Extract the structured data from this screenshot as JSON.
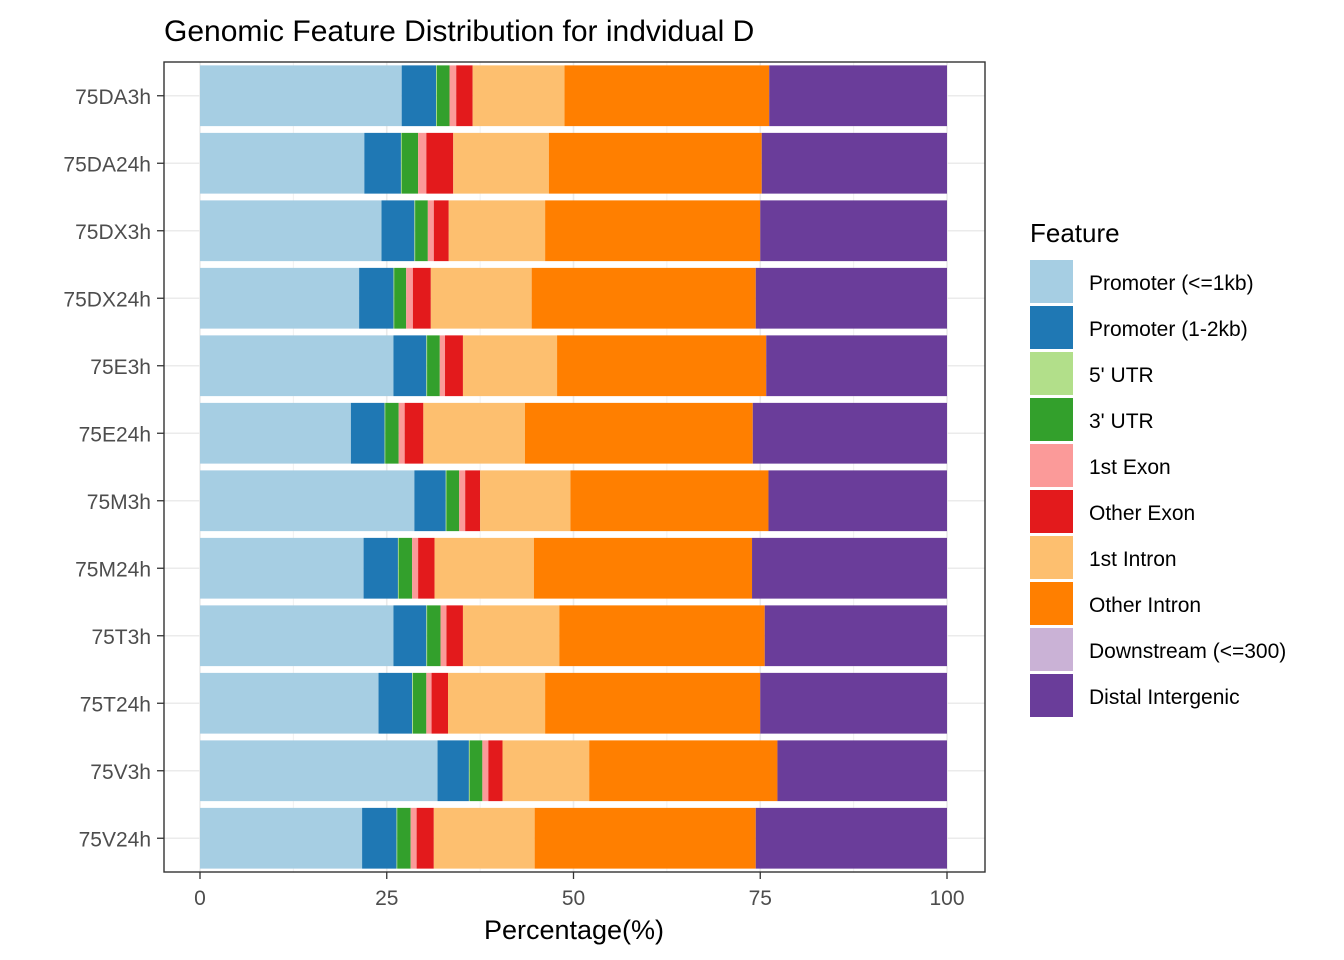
{
  "chart_data": {
    "type": "bar",
    "orientation": "horizontal",
    "stacked": true,
    "title": "Genomic Feature Distribution for indvidual D",
    "xlabel": "Percentage(%)",
    "ylabel": "",
    "xlim": [
      0,
      100
    ],
    "xticks": [
      "0",
      "25",
      "50",
      "75",
      "100"
    ],
    "grid": true,
    "legend_title": "Feature",
    "legend_position": "right",
    "categories": [
      "75DA3h",
      "75DA24h",
      "75DX3h",
      "75DX24h",
      "75E3h",
      "75E24h",
      "75M3h",
      "75M24h",
      "75T3h",
      "75T24h",
      "75V3h",
      "75V24h"
    ],
    "series": [
      {
        "name": "Promoter (<=1kb)",
        "color": "#A6CEE3",
        "values": [
          27.0,
          22.0,
          24.3,
          21.3,
          25.9,
          20.2,
          28.7,
          21.9,
          25.9,
          23.9,
          31.8,
          21.7
        ]
      },
      {
        "name": "Promoter (1-2kb)",
        "color": "#1F78B4",
        "values": [
          4.6,
          4.9,
          4.4,
          4.6,
          4.4,
          4.5,
          4.2,
          4.6,
          4.4,
          4.5,
          4.2,
          4.6
        ]
      },
      {
        "name": "5' UTR",
        "color": "#B2DF8A",
        "values": [
          0.1,
          0.1,
          0.1,
          0.1,
          0.1,
          0.1,
          0.1,
          0.1,
          0.1,
          0.1,
          0.1,
          0.1
        ]
      },
      {
        "name": "3' UTR",
        "color": "#33A02C",
        "values": [
          1.7,
          2.2,
          1.7,
          1.6,
          1.7,
          1.8,
          1.7,
          1.8,
          1.8,
          1.8,
          1.7,
          1.8
        ]
      },
      {
        "name": "1st Exon",
        "color": "#FB9A99",
        "values": [
          0.9,
          1.1,
          0.8,
          0.9,
          0.7,
          0.8,
          0.8,
          0.8,
          0.8,
          0.7,
          0.8,
          0.8
        ]
      },
      {
        "name": "Other Exon",
        "color": "#E31A1C",
        "values": [
          2.2,
          3.6,
          2.0,
          2.4,
          2.4,
          2.5,
          2.0,
          2.2,
          2.2,
          2.2,
          1.9,
          2.3
        ]
      },
      {
        "name": "1st Intron",
        "color": "#FDBF6F",
        "values": [
          12.3,
          12.8,
          12.9,
          13.5,
          12.6,
          13.6,
          12.1,
          13.3,
          12.9,
          13.0,
          11.6,
          13.5
        ]
      },
      {
        "name": "Other Intron",
        "color": "#FF7F00",
        "values": [
          27.4,
          28.5,
          28.8,
          30.0,
          28.0,
          30.5,
          26.5,
          29.2,
          27.5,
          28.8,
          25.2,
          29.6
        ]
      },
      {
        "name": "Downstream (<=300)",
        "color": "#CAB2D6",
        "values": [
          0.0,
          0.0,
          0.0,
          0.0,
          0.0,
          0.0,
          0.0,
          0.0,
          0.0,
          0.0,
          0.0,
          0.0
        ]
      },
      {
        "name": "Distal Intergenic",
        "color": "#6A3D9A",
        "values": [
          23.8,
          24.8,
          25.0,
          25.6,
          24.2,
          26.0,
          23.9,
          26.1,
          24.4,
          25.0,
          22.7,
          25.6
        ]
      }
    ]
  }
}
